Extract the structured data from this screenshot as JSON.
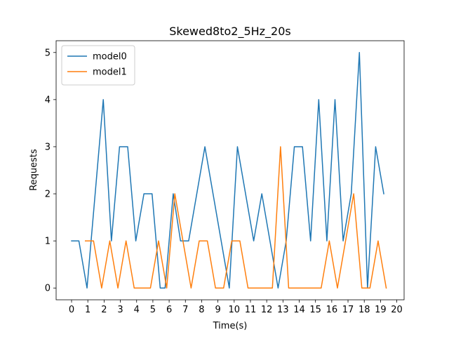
{
  "chart_data": {
    "type": "line",
    "title": "Skewed8to2_5Hz_20s",
    "xlabel": "Time(s)",
    "ylabel": "Requests",
    "xlim": [
      -0.95,
      20.45
    ],
    "ylim": [
      -0.25,
      5.25
    ],
    "xticks": [
      0,
      1,
      2,
      3,
      4,
      5,
      6,
      7,
      8,
      9,
      10,
      11,
      12,
      13,
      14,
      15,
      16,
      17,
      18,
      19,
      20
    ],
    "yticks": [
      0,
      1,
      2,
      3,
      4,
      5
    ],
    "grid": false,
    "legend": "top-left",
    "series": [
      {
        "name": "model0",
        "color": "#1f77b4",
        "x": [
          0.0,
          0.45,
          0.95,
          1.45,
          1.95,
          2.45,
          2.95,
          3.45,
          3.95,
          4.45,
          4.95,
          5.45,
          5.75,
          6.25,
          6.7,
          7.2,
          8.2,
          9.2,
          9.7,
          10.2,
          11.2,
          11.7,
          12.2,
          12.7,
          13.2,
          13.7,
          14.2,
          14.7,
          15.2,
          15.7,
          16.2,
          16.7,
          17.2,
          17.7,
          18.2,
          18.7,
          19.2
        ],
        "y": [
          1,
          1,
          0,
          2,
          4,
          1,
          3,
          3,
          1,
          2,
          2,
          0,
          0,
          2,
          1,
          1,
          3,
          1,
          0,
          3,
          1,
          2,
          1,
          0,
          1,
          3,
          3,
          1,
          4,
          1,
          4,
          1,
          2,
          5,
          0,
          3,
          2
        ]
      },
      {
        "name": "model1",
        "color": "#ff7f0e",
        "x": [
          0.85,
          1.35,
          1.85,
          2.35,
          2.85,
          3.35,
          3.85,
          4.35,
          4.85,
          5.35,
          5.85,
          6.35,
          7.35,
          7.85,
          8.35,
          8.85,
          9.35,
          9.85,
          10.35,
          10.85,
          11.35,
          11.85,
          12.35,
          12.85,
          13.35,
          13.85,
          14.35,
          14.85,
          15.35,
          15.85,
          16.35,
          16.85,
          17.35,
          17.85,
          18.35,
          18.85,
          19.35
        ],
        "y": [
          1,
          1,
          0,
          1,
          0,
          1,
          0,
          0,
          0,
          1,
          0,
          2,
          0,
          1,
          1,
          0,
          0,
          1,
          1,
          0,
          0,
          0,
          0,
          3,
          0,
          0,
          0,
          0,
          0,
          1,
          0,
          1,
          2,
          0,
          0,
          1,
          0
        ]
      }
    ]
  }
}
